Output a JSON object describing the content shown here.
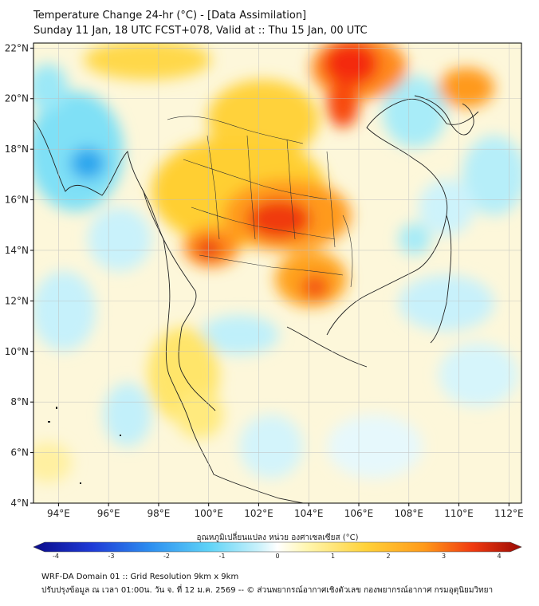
{
  "header": {
    "title": "Temperature Change 24-hr (°C) - [Data Assimilation]",
    "subtitle": "Sunday 11 Jan, 18 UTC FCST+078, Valid at :: Thu 15 Jan, 00 UTC"
  },
  "map": {
    "lon_ticks": [
      "94°E",
      "96°E",
      "98°E",
      "100°E",
      "102°E",
      "104°E",
      "106°E",
      "108°E",
      "110°E",
      "112°E"
    ],
    "lat_ticks": [
      "22°N",
      "20°N",
      "18°N",
      "16°N",
      "14°N",
      "12°N",
      "10°N",
      "8°N",
      "6°N",
      "4°N"
    ],
    "lon_range": [
      93,
      112.5
    ],
    "lat_range": [
      4,
      22.2
    ],
    "grid": true
  },
  "colorbar": {
    "label": "อุณหภูมิเปลี่ยนแปลง หน่วย องศาเซลเซียส (°C)",
    "ticks": [
      "-4",
      "-3",
      "-2",
      "-1",
      "0",
      "1",
      "2",
      "3",
      "4"
    ],
    "range": [
      -4,
      4
    ],
    "colors": [
      "#0b0b8a",
      "#1f3bd6",
      "#2d8ff0",
      "#5fd3f7",
      "#c8f1fb",
      "#ffffff",
      "#fff6b0",
      "#ffd23a",
      "#ff9a1a",
      "#f03a10",
      "#9a0a05"
    ]
  },
  "footer": {
    "line1": "WRF-DA Domain 01 :: Grid Resolution 9km x 9km",
    "line2": "ปรับปรุงข้อมูล ณ เวลา 01:00น. วัน จ. ที่ 12 ม.ค. 2569 -- © ส่วนพยากรณ์อากาศเชิงตัวเลข กองพยากรณ์อากาศ กรมอุตุนิยมวิทยา"
  }
}
